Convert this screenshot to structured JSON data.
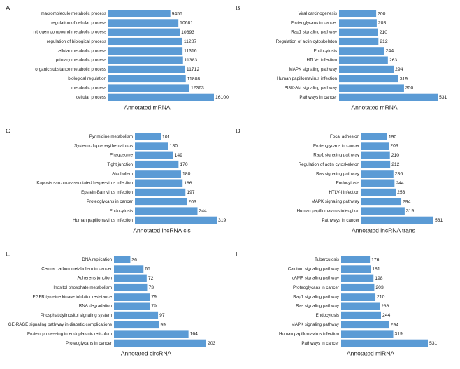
{
  "chart_data": [
    {
      "type": "bar",
      "orientation": "horizontal",
      "label": "A",
      "title": "Annotated mRNA",
      "color": "#5b9bd5",
      "categories": [
        "macromolecule metabolic process",
        "regulation of cellular process",
        "nitrogen compound metabolic process",
        "regulation of biological process",
        "cellular metabolic process",
        "primary metabolic process",
        "organic substance metabolic process",
        "biological regulation",
        "metabolic process",
        "cellular process"
      ],
      "values": [
        9455,
        10681,
        10893,
        11287,
        11316,
        11383,
        11712,
        11808,
        12363,
        16100
      ],
      "xlim": [
        0,
        16100
      ]
    },
    {
      "type": "bar",
      "orientation": "horizontal",
      "label": "B",
      "title": "Annotated mRNA",
      "color": "#5b9bd5",
      "categories": [
        "Viral carcinogenesis",
        "Proteoglycans in cancer",
        "Rap1 signaling pathway",
        "Regulation of actin cytoskeleton",
        "Endocytosis",
        "HTLV-I infection",
        "MAPK signaling pathway",
        "Human papillomavirus infection",
        "PI3K-Akt signaling pathway",
        "Pathways in cancer"
      ],
      "values": [
        200,
        203,
        210,
        212,
        244,
        263,
        294,
        319,
        350,
        531
      ],
      "xlim": [
        0,
        531
      ]
    },
    {
      "type": "bar",
      "orientation": "horizontal",
      "label": "C",
      "title": "Annotated lncRNA cis",
      "color": "#5b9bd5",
      "categories": [
        "Pyrimidine metabolism",
        "Systemic lupus erythematosus",
        "Phagosome",
        "Tight junction",
        "Alcoholism",
        "Kaposis sarcoma-associated herpesvirus infection",
        "Epstein-Barr virus infection",
        "Proteoglycans in cancer",
        "Endocytosis",
        "Human papillomavirus infection"
      ],
      "values": [
        101,
        130,
        149,
        170,
        180,
        186,
        197,
        203,
        244,
        319
      ],
      "xlim": [
        0,
        319
      ]
    },
    {
      "type": "bar",
      "orientation": "horizontal",
      "label": "D",
      "title": "Annotated lncRNA trans",
      "color": "#5b9bd5",
      "categories": [
        "Focal adhesion",
        "Proteoglycans in cancer",
        "Rap1 signaling pathway",
        "Regulation of actin cytoskeleton",
        "Ras signaling pathway",
        "Endocytosis",
        "HTLV-I infection",
        "MAPK signaling pathway",
        "Human papillomavirus infecgtion",
        "Pathways in cancer"
      ],
      "values": [
        190,
        203,
        210,
        212,
        236,
        244,
        253,
        294,
        319,
        531
      ],
      "xlim": [
        0,
        531
      ]
    },
    {
      "type": "bar",
      "orientation": "horizontal",
      "label": "E",
      "title": "Annotated circRNA",
      "color": "#5b9bd5",
      "categories": [
        "DNA replication",
        "Central carbon metabolism in cancer",
        "Adherens junction",
        "Inositol phosphate metabolism",
        "EGFR tyrosine kinase inhibitor resistance",
        "RNA degradation",
        "Phosphatidylinositol signaling system",
        "GE-RAGE signaling pathway in diabetic complications",
        "Protein processing in endoplasmic reticulum",
        "Proteoglycans in cancer"
      ],
      "values": [
        36,
        65,
        72,
        73,
        79,
        79,
        97,
        99,
        164,
        203
      ],
      "xlim": [
        0,
        203
      ]
    },
    {
      "type": "bar",
      "orientation": "horizontal",
      "label": "F",
      "title": "Annotated miRNA",
      "color": "#5b9bd5",
      "categories": [
        "Tuberculosis",
        "Calcium signaling pathway",
        "cAMP signaling pathway",
        "Proteoglycans in cancer",
        "Rap1 signaling pathway",
        "Ras signaling pathway",
        "Endocytosis",
        "MAPK signaling pathway",
        "Human papillomavirus infection",
        "Pathways in cancer"
      ],
      "values": [
        176,
        181,
        198,
        203,
        210,
        236,
        244,
        294,
        319,
        531
      ],
      "xlim": [
        0,
        531
      ]
    }
  ]
}
